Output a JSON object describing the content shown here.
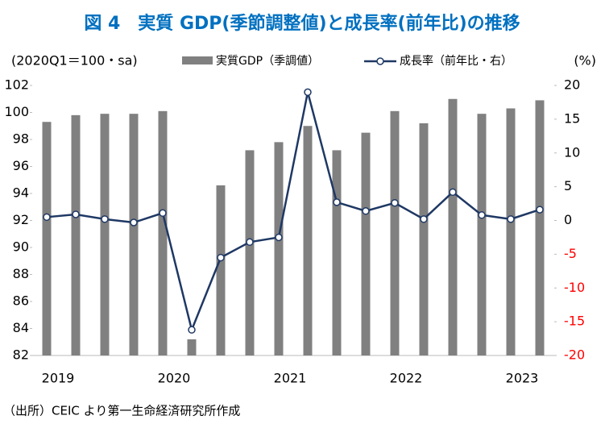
{
  "chart_data": {
    "type": "bar_line",
    "title": "図 4　実質 GDP(季節調整値)と成長率(前年比)の推移",
    "ylabel": "(2020Q1＝100・sa)",
    "y2label": "(%)",
    "source": "（出所）CEIC より第一生命経済研究所作成",
    "categories": [
      "2019",
      null,
      null,
      null,
      "2020",
      null,
      null,
      null,
      "2021",
      null,
      null,
      null,
      "2022",
      null,
      null,
      null,
      "2023",
      null
    ],
    "series": [
      {
        "name": "実質GDP（季調値）",
        "color": "#808080",
        "type": "bar",
        "values": [
          99.3,
          99.8,
          99.9,
          99.9,
          100.1,
          83.2,
          94.6,
          97.2,
          97.8,
          99.0,
          97.2,
          98.5,
          100.1,
          99.2,
          101.0,
          99.9,
          100.3,
          100.9
        ]
      },
      {
        "name": "成長率（前年比・右）",
        "color": "#1f3864",
        "type": "line",
        "axis": "y2",
        "values": [
          0.5,
          0.9,
          0.2,
          -0.3,
          1.1,
          -16.2,
          -5.5,
          -3.2,
          -2.5,
          19.0,
          2.7,
          1.4,
          2.6,
          0.2,
          4.2,
          0.8,
          0.2,
          1.6
        ]
      }
    ],
    "ylim": [
      82,
      102
    ],
    "yticks": [
      82,
      84,
      86,
      88,
      90,
      92,
      94,
      96,
      98,
      100,
      102
    ],
    "y2lim": [
      -20,
      20
    ],
    "y2ticks": [
      -20,
      -15,
      -10,
      -5,
      0,
      5,
      10,
      15,
      20
    ],
    "title_color": "#0070c0",
    "y2_negative_color": "#ff0000"
  }
}
